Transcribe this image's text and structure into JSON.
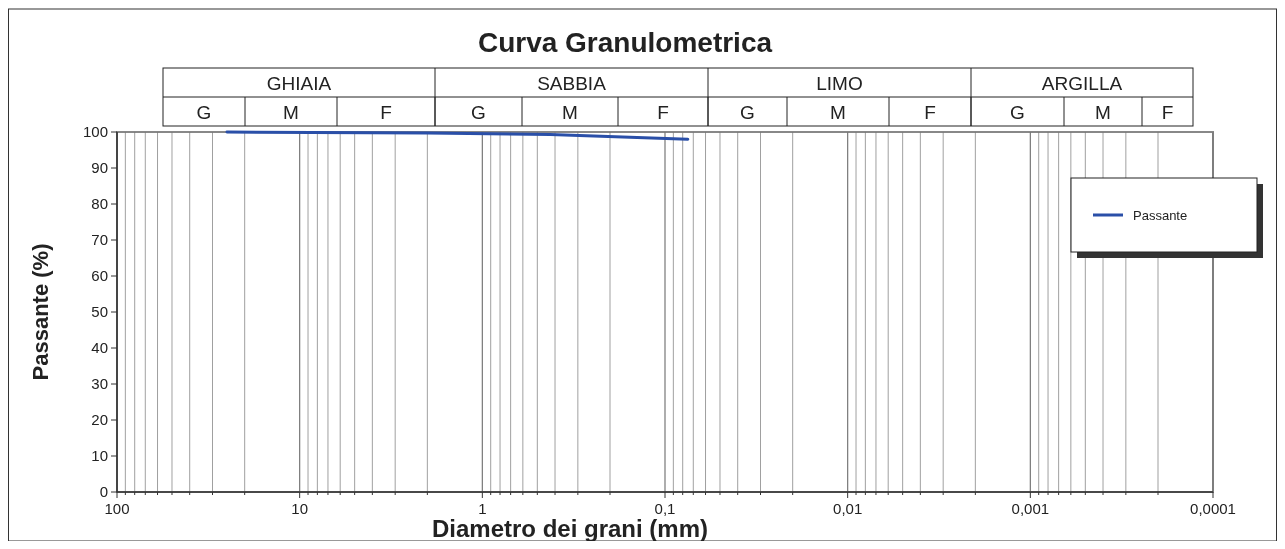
{
  "chart_data": {
    "type": "line",
    "title": "Curva Granulometrica",
    "xlabel": "Diametro dei grani (mm)",
    "ylabel": "Passante (%)",
    "annotations": [
      "GHIAIA",
      "SABBIA",
      "LIMO",
      "ARGILLA",
      "G",
      "M",
      "F",
      "G",
      "M",
      "F",
      "G",
      "M",
      "F",
      "G",
      "M",
      "F"
    ],
    "x": [
      25,
      2,
      0.425,
      0.075
    ],
    "series": [
      {
        "name": "Passante",
        "color": "#2a4fa8",
        "values": [
          100,
          99.7,
          99.3,
          98
        ]
      }
    ],
    "log": "x",
    "xlim": [
      100,
      0.0001
    ],
    "ylim": [
      0,
      100
    ],
    "xticks": [
      {
        "value": 100,
        "label": "100"
      },
      {
        "value": 90,
        "label": null
      },
      {
        "value": 80,
        "label": null
      },
      {
        "value": 70,
        "label": null
      },
      {
        "value": 60,
        "label": null
      },
      {
        "value": 50,
        "label": null
      },
      {
        "value": 40,
        "label": null
      },
      {
        "value": 30,
        "label": null
      },
      {
        "value": 20,
        "label": null
      },
      {
        "value": 10,
        "label": "10"
      },
      {
        "value": 9,
        "label": null
      },
      {
        "value": 8,
        "label": null
      },
      {
        "value": 7,
        "label": null
      },
      {
        "value": 6,
        "label": null
      },
      {
        "value": 5,
        "label": null
      },
      {
        "value": 4,
        "label": null
      },
      {
        "value": 3,
        "label": null
      },
      {
        "value": 2,
        "label": null
      },
      {
        "value": 1,
        "label": "1"
      },
      {
        "value": 0.9,
        "label": null
      },
      {
        "value": 0.8,
        "label": null
      },
      {
        "value": 0.7,
        "label": null
      },
      {
        "value": 0.6,
        "label": null
      },
      {
        "value": 0.5,
        "label": null
      },
      {
        "value": 0.4,
        "label": null
      },
      {
        "value": 0.3,
        "label": null
      },
      {
        "value": 0.2,
        "label": null
      },
      {
        "value": 0.1,
        "label": "0,1"
      },
      {
        "value": 0.09,
        "label": null
      },
      {
        "value": 0.08,
        "label": null
      },
      {
        "value": 0.07,
        "label": null
      },
      {
        "value": 0.06,
        "label": null
      },
      {
        "value": 0.05,
        "label": null
      },
      {
        "value": 0.04,
        "label": null
      },
      {
        "value": 0.03,
        "label": null
      },
      {
        "value": 0.02,
        "label": null
      },
      {
        "value": 0.01,
        "label": "0,01"
      },
      {
        "value": 0.009,
        "label": null
      },
      {
        "value": 0.008,
        "label": null
      },
      {
        "value": 0.007,
        "label": null
      },
      {
        "value": 0.006,
        "label": null
      },
      {
        "value": 0.005,
        "label": null
      },
      {
        "value": 0.004,
        "label": null
      },
      {
        "value": 0.003,
        "label": null
      },
      {
        "value": 0.002,
        "label": null
      },
      {
        "value": 0.001,
        "label": "0,001"
      },
      {
        "value": 0.0009,
        "label": null
      },
      {
        "value": 0.0008,
        "label": null
      },
      {
        "value": 0.0007,
        "label": null
      },
      {
        "value": 0.0006,
        "label": null
      },
      {
        "value": 0.0005,
        "label": null
      },
      {
        "value": 0.0004,
        "label": null
      },
      {
        "value": 0.0003,
        "label": null
      },
      {
        "value": 0.0002,
        "label": null
      },
      {
        "value": 0.0001,
        "label": "0,0001"
      }
    ],
    "yticks": [
      0,
      10,
      20,
      30,
      40,
      50,
      60,
      70,
      80,
      90,
      100
    ],
    "grid": "x",
    "legend": "top right",
    "marker": "none",
    "line_style": "solid"
  }
}
